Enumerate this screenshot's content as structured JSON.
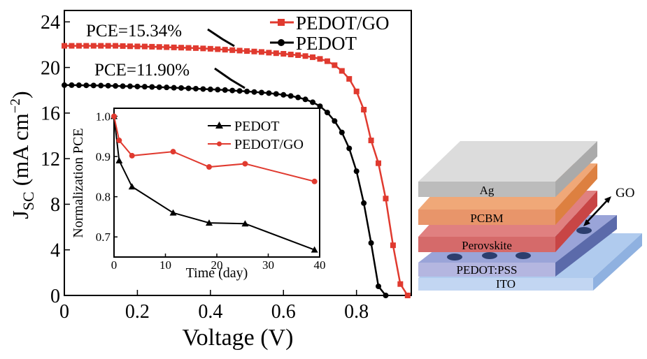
{
  "chart_data": [
    {
      "type": "line",
      "xlabel": "Voltage (V)",
      "ylabel": "J",
      "ylabel_sub": "SC",
      "ylabel_unit": " (mA cm",
      "ylabel_exp": "−2",
      "ylabel_close": ")",
      "xlim": [
        0,
        0.95
      ],
      "ylim": [
        0,
        25
      ],
      "xticks": [
        0,
        0.2,
        0.4,
        0.6,
        0.8
      ],
      "xtick_labels": [
        "0",
        "0.2",
        "0.4",
        "0.6",
        "0.8"
      ],
      "yticks": [
        0,
        4,
        8,
        12,
        16,
        20,
        24
      ],
      "ytick_labels": [
        "0",
        "4",
        "8",
        "12",
        "16",
        "20",
        "24"
      ],
      "annotations": [
        "PCE=15.34%",
        "PCE=11.90%"
      ],
      "legend_position": "top-right",
      "series": [
        {
          "name": "PEDOT/GO",
          "color": "#e03a2f",
          "marker": "square",
          "x": [
            0,
            0.02,
            0.04,
            0.06,
            0.08,
            0.1,
            0.12,
            0.14,
            0.16,
            0.18,
            0.2,
            0.22,
            0.24,
            0.26,
            0.28,
            0.3,
            0.32,
            0.34,
            0.36,
            0.38,
            0.4,
            0.42,
            0.44,
            0.46,
            0.48,
            0.5,
            0.52,
            0.54,
            0.56,
            0.58,
            0.6,
            0.62,
            0.64,
            0.66,
            0.68,
            0.7,
            0.72,
            0.74,
            0.76,
            0.78,
            0.8,
            0.82,
            0.84,
            0.86,
            0.88,
            0.9,
            0.92,
            0.94
          ],
          "y": [
            21.9,
            21.9,
            21.9,
            21.9,
            21.9,
            21.9,
            21.9,
            21.9,
            21.88,
            21.86,
            21.85,
            21.84,
            21.82,
            21.8,
            21.78,
            21.76,
            21.74,
            21.72,
            21.7,
            21.67,
            21.64,
            21.6,
            21.56,
            21.52,
            21.48,
            21.44,
            21.4,
            21.36,
            21.3,
            21.25,
            21.2,
            21.14,
            21.08,
            21.0,
            20.9,
            20.75,
            20.55,
            20.2,
            19.7,
            19.0,
            17.9,
            16.3,
            13.6,
            11.6,
            8.5,
            4.4,
            1.0,
            0
          ]
        },
        {
          "name": "PEDOT",
          "color": "#000000",
          "marker": "circle",
          "x": [
            0,
            0.02,
            0.04,
            0.06,
            0.08,
            0.1,
            0.12,
            0.14,
            0.16,
            0.18,
            0.2,
            0.22,
            0.24,
            0.26,
            0.28,
            0.3,
            0.32,
            0.34,
            0.36,
            0.38,
            0.4,
            0.42,
            0.44,
            0.46,
            0.48,
            0.5,
            0.52,
            0.54,
            0.56,
            0.58,
            0.6,
            0.62,
            0.64,
            0.66,
            0.68,
            0.7,
            0.72,
            0.74,
            0.76,
            0.78,
            0.8,
            0.82,
            0.84,
            0.86,
            0.88
          ],
          "y": [
            18.45,
            18.45,
            18.44,
            18.43,
            18.42,
            18.41,
            18.4,
            18.38,
            18.36,
            18.35,
            18.33,
            18.31,
            18.29,
            18.27,
            18.25,
            18.22,
            18.2,
            18.17,
            18.14,
            18.11,
            18.08,
            18.05,
            18.02,
            17.98,
            17.94,
            17.9,
            17.85,
            17.8,
            17.75,
            17.68,
            17.6,
            17.5,
            17.37,
            17.2,
            16.95,
            16.6,
            16.05,
            15.3,
            14.3,
            12.9,
            10.9,
            8.1,
            4.6,
            0.8,
            0
          ]
        }
      ]
    },
    {
      "type": "line",
      "xlabel": "Time (day)",
      "ylabel": "Normalization PCE",
      "xlim": [
        0,
        40
      ],
      "ylim": [
        0.65,
        1.02
      ],
      "xticks": [
        0,
        10,
        20,
        30,
        40
      ],
      "xtick_labels": [
        "0",
        "10",
        "20",
        "30",
        "40"
      ],
      "yticks": [
        0.7,
        0.8,
        0.9,
        1.0
      ],
      "ytick_labels": [
        "0.7",
        "0.8",
        "0.9",
        "1.0"
      ],
      "legend_position": "top-right",
      "series": [
        {
          "name": "PEDOT",
          "color": "#000000",
          "marker": "triangle",
          "x": [
            0,
            1,
            3.5,
            11.5,
            18.5,
            25.5,
            39
          ],
          "y": [
            1.0,
            0.89,
            0.825,
            0.76,
            0.735,
            0.733,
            0.668
          ]
        },
        {
          "name": "PEDOT/GO",
          "color": "#e03a2f",
          "marker": "circle",
          "x": [
            0,
            1,
            3.5,
            11.5,
            18.5,
            25.5,
            39
          ],
          "y": [
            1.0,
            0.94,
            0.902,
            0.912,
            0.874,
            0.882,
            0.838
          ]
        }
      ]
    }
  ],
  "device_diagram": {
    "layers": [
      {
        "label": "Ag",
        "top": "#dcdcdc",
        "front": "#bcbcbc",
        "side": "#aaaaaa"
      },
      {
        "label": "PCBM",
        "top": "#f0a878",
        "front": "#e8956a",
        "side": "#dd8040"
      },
      {
        "label": "Perovskite",
        "top": "#e08080",
        "front": "#d56a6a",
        "side": "#c84545"
      },
      {
        "label": "PEDOT:PSS",
        "top": "#9aa4d8",
        "front": "#b4b6e0",
        "side": "#5b6aaa"
      },
      {
        "label": "ITO",
        "top": "#b0cbee",
        "front": "#c2d6f2",
        "side": "#8fb1e0"
      }
    ],
    "pointer_label": "GO"
  }
}
